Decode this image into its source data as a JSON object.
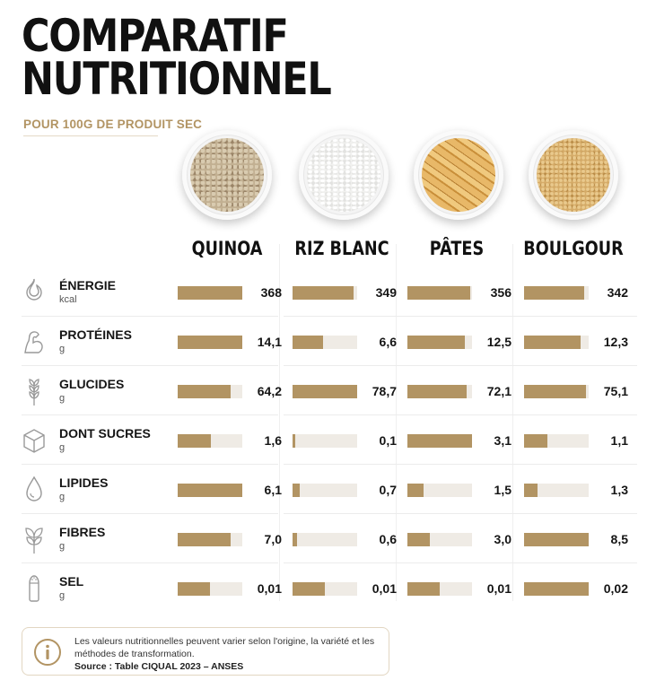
{
  "title_line1": "COMPARATIF",
  "title_line2": "NUTRITIONNEL",
  "subtitle": "POUR 100G DE PRODUIT SEC",
  "accent_color": "#b29463",
  "chart_data": {
    "type": "bar",
    "orientation": "horizontal",
    "categories": [
      "QUINOA",
      "RIZ BLANC",
      "PÂTES",
      "BOULGOUR"
    ],
    "rows": [
      {
        "label": "ÉNERGIE",
        "unit": "kcal",
        "icon": "flame-icon",
        "display": [
          "368",
          "349",
          "356",
          "342"
        ],
        "values": [
          368,
          349,
          356,
          342
        ]
      },
      {
        "label": "PROTÉINES",
        "unit": "g",
        "icon": "muscle-icon",
        "display": [
          "14,1",
          "6,6",
          "12,5",
          "12,3"
        ],
        "values": [
          14.1,
          6.6,
          12.5,
          12.3
        ]
      },
      {
        "label": "GLUCIDES",
        "unit": "g",
        "icon": "wheat-icon",
        "display": [
          "64,2",
          "78,7",
          "72,1",
          "75,1"
        ],
        "values": [
          64.2,
          78.7,
          72.1,
          75.1
        ]
      },
      {
        "label": "DONT SUCRES",
        "unit": "g",
        "icon": "sugar-cube-icon",
        "display": [
          "1,6",
          "0,1",
          "3,1",
          "1,1"
        ],
        "values": [
          1.6,
          0.1,
          3.1,
          1.1
        ]
      },
      {
        "label": "LIPIDES",
        "unit": "g",
        "icon": "drop-icon",
        "display": [
          "6,1",
          "0,7",
          "1,5",
          "1,3"
        ],
        "values": [
          6.1,
          0.7,
          1.5,
          1.3
        ]
      },
      {
        "label": "FIBRES",
        "unit": "g",
        "icon": "leaf-icon",
        "display": [
          "7,0",
          "0,6",
          "3,0",
          "8,5"
        ],
        "values": [
          7.0,
          0.6,
          3.0,
          8.5
        ]
      },
      {
        "label": "SEL",
        "unit": "g",
        "icon": "salt-shaker-icon",
        "display": [
          "0,01",
          "0,01",
          "0,01",
          "0,02"
        ],
        "values": [
          0.01,
          0.01,
          0.01,
          0.02
        ]
      }
    ]
  },
  "note": {
    "text": "Les valeurs nutritionnelles peuvent varier selon l'origine, la variété et les méthodes de transformation.",
    "source": "Source : Table CIQUAL 2023 – ANSES"
  }
}
